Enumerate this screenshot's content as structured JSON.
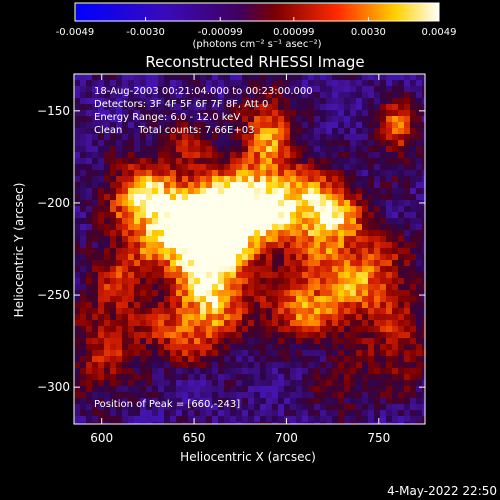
{
  "chart_data": {
    "type": "heatmap",
    "title": "Reconstructed RHESSI Image",
    "xlabel": "Heliocentric X (arcsec)",
    "ylabel": "Heliocentric Y (arcsec)",
    "xlim": [
      585,
      775
    ],
    "ylim": [
      -320,
      -130
    ],
    "x_ticks": [
      600,
      650,
      700,
      750
    ],
    "y_ticks": [
      -150,
      -200,
      -250,
      -300
    ],
    "colorbar": {
      "range": [
        -0.0049,
        0.0049
      ],
      "ticks": [
        "-0.0049",
        "-0.0030",
        "-0.00099",
        "0.00099",
        "0.0030",
        "0.0049"
      ],
      "tick_values": [
        -0.0049,
        -0.003,
        -0.00099,
        0.00099,
        0.003,
        0.0049
      ],
      "unit_label": "(photons cm⁻² s⁻¹ asec⁻²)"
    },
    "annotations": [
      "18-Aug-2003 00:21:04.000 to 00:23:00.000",
      "Detectors: 3F 4F 5F 6F 7F 8F, Att 0",
      "Energy Range: 6.0 - 12.0 keV",
      "Clean     Total counts: 7.66E+03",
      "Position of Peak = [660,-243]"
    ],
    "peak": [
      660,
      -243
    ],
    "grid": false
  },
  "footer": {
    "date": "4-May-2022 22:50"
  }
}
